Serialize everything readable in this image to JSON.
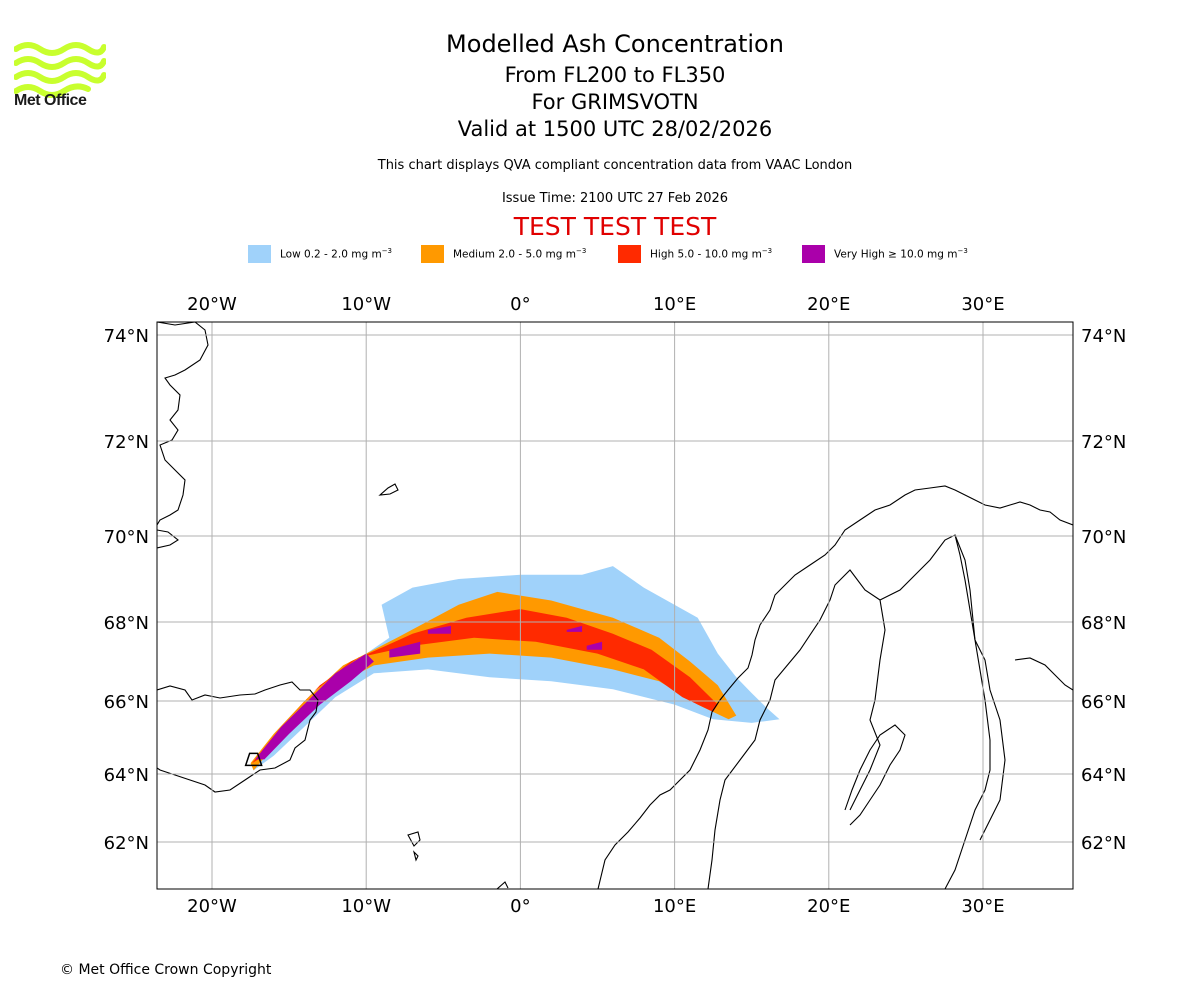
{
  "logo": {
    "text": "Met Office",
    "icon": "met-office-waves-logo",
    "color": "#c8ff2e"
  },
  "header": {
    "title": "Modelled Ash Concentration",
    "flight_levels": "From FL200 to FL350",
    "volcano": "For GRIMSVOTN",
    "valid_time": "Valid at 1500 UTC 28/02/2026",
    "description": "This chart displays QVA compliant concentration data from VAAC London",
    "issue_time": "Issue Time: 2100 UTC 27 Feb 2026",
    "test_banner": "TEST TEST TEST",
    "test_color": "#e00000"
  },
  "legend": [
    {
      "label": "Low 0.2 - 2.0 mg m",
      "sup": "−3",
      "color": "#a0d2fa"
    },
    {
      "label": "Medium 2.0 - 5.0 mg m",
      "sup": "−3",
      "color": "#ff9900"
    },
    {
      "label": "High 5.0 - 10.0 mg m",
      "sup": "−3",
      "color": "#ff2a00"
    },
    {
      "label": "Very High  ≥  10.0 mg m",
      "sup": "−3",
      "color": "#aa00aa"
    }
  ],
  "map": {
    "lon_range": [
      -23.6,
      35.8
    ],
    "lon_ticks": [
      {
        "value": -20,
        "label": "20°W"
      },
      {
        "value": -10,
        "label": "10°W"
      },
      {
        "value": 0,
        "label": "0°"
      },
      {
        "value": 10,
        "label": "10°E"
      },
      {
        "value": 20,
        "label": "20°E"
      },
      {
        "value": 30,
        "label": "30°E"
      }
    ],
    "lat_ticks": [
      {
        "value": 74,
        "label": "74°N"
      },
      {
        "value": 72,
        "label": "72°N"
      },
      {
        "value": 70,
        "label": "70°N"
      },
      {
        "value": 68,
        "label": "68°N"
      },
      {
        "value": 66,
        "label": "66°N"
      },
      {
        "value": 64,
        "label": "64°N"
      },
      {
        "value": 62,
        "label": "62°N"
      }
    ],
    "volcano": {
      "name": "GRIMSVOTN",
      "lon": -17.3,
      "lat": 64.4
    },
    "ash_levels": [
      {
        "level": "low",
        "color": "#a0d2fa",
        "outline": [
          [
            -17.5,
            64.3
          ],
          [
            -16,
            65
          ],
          [
            -14,
            65.9
          ],
          [
            -12,
            66.6
          ],
          [
            -10,
            67.2
          ],
          [
            -8.5,
            67.6
          ],
          [
            -9,
            68.4
          ],
          [
            -7,
            68.8
          ],
          [
            -4,
            69
          ],
          [
            0,
            69.1
          ],
          [
            4,
            69.1
          ],
          [
            6,
            69.3
          ],
          [
            8,
            68.8
          ],
          [
            11.5,
            68.1
          ],
          [
            12.8,
            67.2
          ],
          [
            14,
            66.6
          ],
          [
            15,
            66.2
          ],
          [
            16,
            65.8
          ],
          [
            16.8,
            65.5
          ],
          [
            15,
            65.4
          ],
          [
            12.5,
            65.5
          ],
          [
            10,
            65.9
          ],
          [
            6,
            66.3
          ],
          [
            2,
            66.5
          ],
          [
            -2,
            66.6
          ],
          [
            -6,
            66.8
          ],
          [
            -9.5,
            66.7
          ],
          [
            -12,
            66.1
          ],
          [
            -14,
            65.3
          ],
          [
            -16,
            64.5
          ],
          [
            -17.3,
            64.1
          ]
        ]
      },
      {
        "level": "medium",
        "color": "#ff9900",
        "outline": [
          [
            -17.5,
            64.3
          ],
          [
            -16,
            65.1
          ],
          [
            -14,
            66
          ],
          [
            -11.5,
            66.9
          ],
          [
            -8,
            67.6
          ],
          [
            -4,
            68.4
          ],
          [
            -1.5,
            68.7
          ],
          [
            2,
            68.5
          ],
          [
            6,
            68.1
          ],
          [
            9,
            67.6
          ],
          [
            11,
            67
          ],
          [
            12.8,
            66.4
          ],
          [
            14,
            65.6
          ],
          [
            13.5,
            65.5
          ],
          [
            11.5,
            65.9
          ],
          [
            9,
            66.5
          ],
          [
            6,
            66.8
          ],
          [
            2,
            67.1
          ],
          [
            -2,
            67.2
          ],
          [
            -6,
            67.1
          ],
          [
            -9.5,
            66.9
          ],
          [
            -12,
            66.4
          ],
          [
            -14.5,
            65.4
          ],
          [
            -16.5,
            64.5
          ],
          [
            -17.3,
            64.1
          ]
        ]
      },
      {
        "level": "high",
        "color": "#ff2a00",
        "outline": [
          [
            -17.4,
            64.3
          ],
          [
            -15.5,
            65.3
          ],
          [
            -13.5,
            66.2
          ],
          [
            -11,
            67
          ],
          [
            -7,
            67.7
          ],
          [
            -3.5,
            68.1
          ],
          [
            0,
            68.3
          ],
          [
            3,
            68.1
          ],
          [
            6,
            67.7
          ],
          [
            8.5,
            67.3
          ],
          [
            11,
            66.6
          ],
          [
            12.8,
            65.9
          ],
          [
            12.5,
            65.7
          ],
          [
            10.5,
            66.1
          ],
          [
            8,
            66.8
          ],
          [
            5,
            67.2
          ],
          [
            1,
            67.5
          ],
          [
            -3,
            67.6
          ],
          [
            -7,
            67.4
          ],
          [
            -10.5,
            67.1
          ],
          [
            -13,
            66.4
          ],
          [
            -15.5,
            65.3
          ],
          [
            -17,
            64.4
          ]
        ]
      },
      {
        "level": "very_high",
        "color": "#aa00aa",
        "outline": [
          [
            -17.2,
            64.4
          ],
          [
            -15.5,
            65.3
          ],
          [
            -13.8,
            66
          ],
          [
            -12,
            66.7
          ],
          [
            -10,
            67.2
          ],
          [
            -9.5,
            67
          ],
          [
            -11,
            66.5
          ],
          [
            -13,
            65.9
          ],
          [
            -15,
            65.1
          ],
          [
            -16.6,
            64.4
          ]
        ],
        "patches": [
          [
            [
              -8.5,
              67.3
            ],
            [
              -6.5,
              67.5
            ],
            [
              -6.5,
              67.2
            ],
            [
              -8.5,
              67.1
            ]
          ],
          [
            [
              -6,
              67.8
            ],
            [
              -4.5,
              67.9
            ],
            [
              -4.5,
              67.7
            ],
            [
              -6,
              67.7
            ]
          ],
          [
            [
              3,
              67.8
            ],
            [
              4,
              67.9
            ],
            [
              4,
              67.75
            ],
            [
              3,
              67.75
            ]
          ],
          [
            [
              4.3,
              67.4
            ],
            [
              5.3,
              67.5
            ],
            [
              5.3,
              67.3
            ],
            [
              4.3,
              67.3
            ]
          ]
        ]
      }
    ]
  },
  "footer": {
    "copyright": "© Met Office Crown Copyright"
  }
}
